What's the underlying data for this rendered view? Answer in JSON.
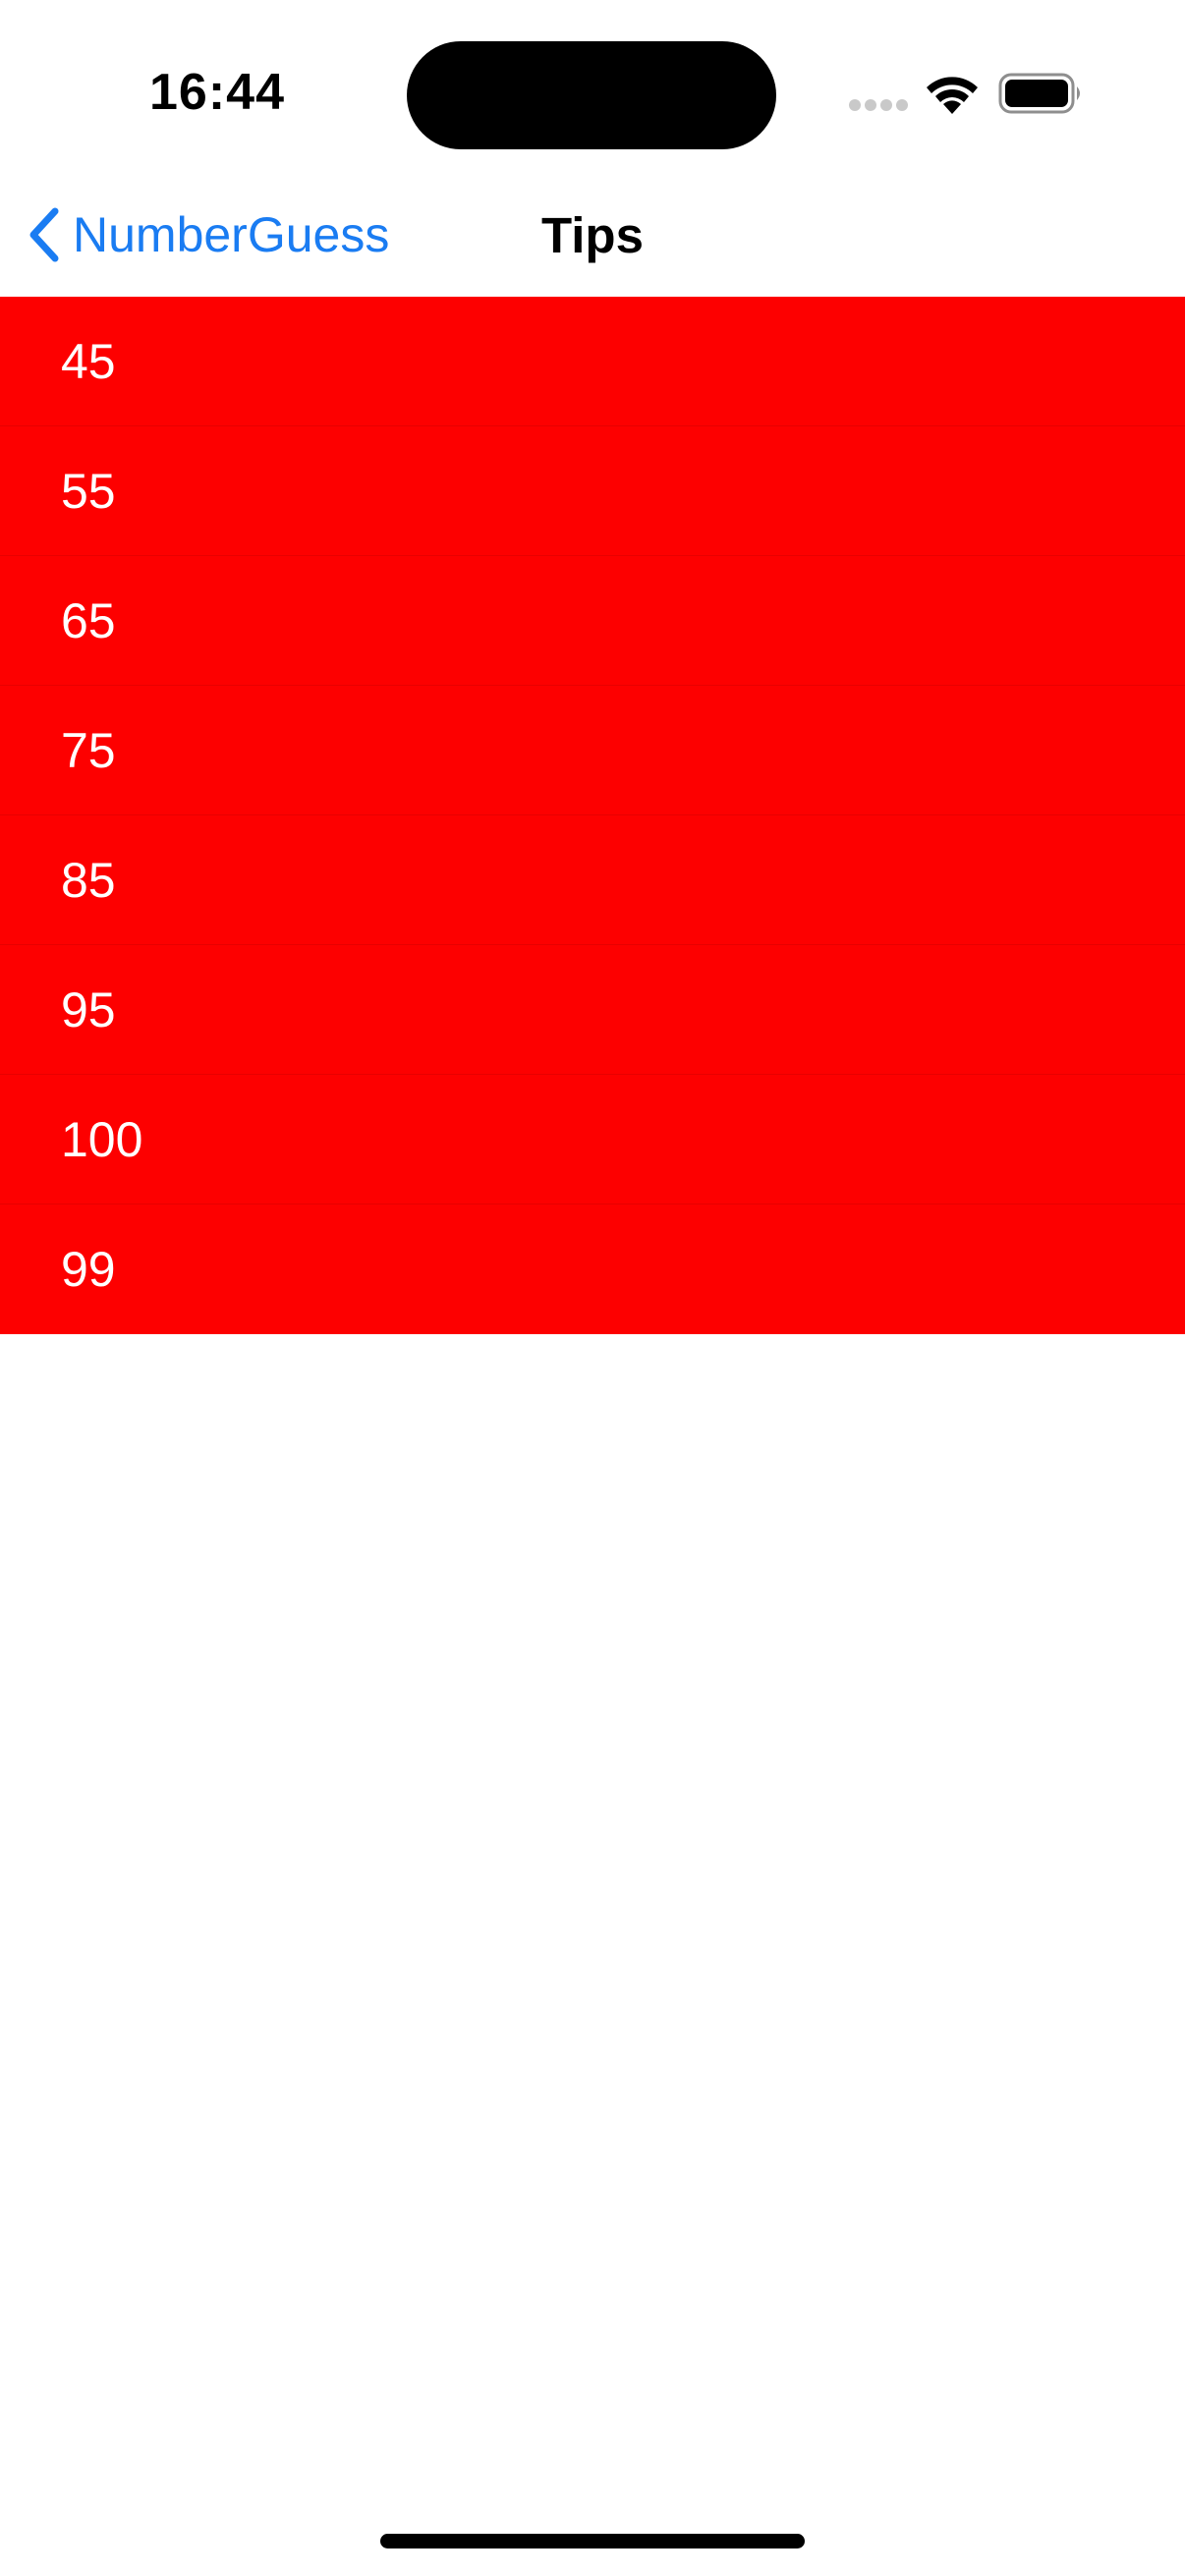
{
  "status_bar": {
    "time": "16:44",
    "icons": [
      "signal-icon",
      "wifi-icon",
      "battery-icon"
    ]
  },
  "nav": {
    "back_label": "NumberGuess",
    "title": "Tips",
    "accent_color": "#1a7cf2"
  },
  "tips": {
    "row_color": "#fd0000",
    "items": [
      {
        "value": "45"
      },
      {
        "value": "55"
      },
      {
        "value": "65"
      },
      {
        "value": "75"
      },
      {
        "value": "85"
      },
      {
        "value": "95"
      },
      {
        "value": "100"
      },
      {
        "value": "99"
      }
    ]
  }
}
